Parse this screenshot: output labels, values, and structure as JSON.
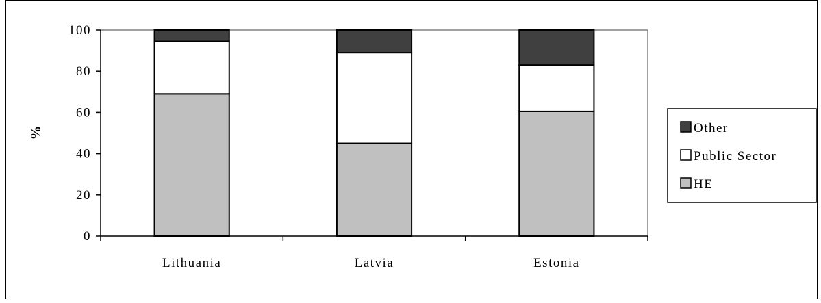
{
  "chart_data": {
    "type": "bar",
    "stacked": true,
    "categories": [
      "Lithuania",
      "Latvia",
      "Estonia"
    ],
    "series": [
      {
        "name": "HE",
        "values": [
          69,
          45,
          60.5
        ],
        "color": "#c0c0c0"
      },
      {
        "name": "Public Sector",
        "values": [
          25.5,
          44,
          22.5
        ],
        "color": "#ffffff"
      },
      {
        "name": "Other",
        "values": [
          5.5,
          11,
          17
        ],
        "color": "#404040"
      }
    ],
    "ylabel": "%",
    "xlabel": "",
    "ylim": [
      0,
      100
    ],
    "yticks": [
      "0",
      "20",
      "40",
      "60",
      "80",
      "100"
    ],
    "legend": {
      "placement": "right",
      "order": [
        "Other",
        "Public Sector",
        "HE"
      ]
    },
    "grid": false,
    "plot_area_border": "#808080"
  }
}
